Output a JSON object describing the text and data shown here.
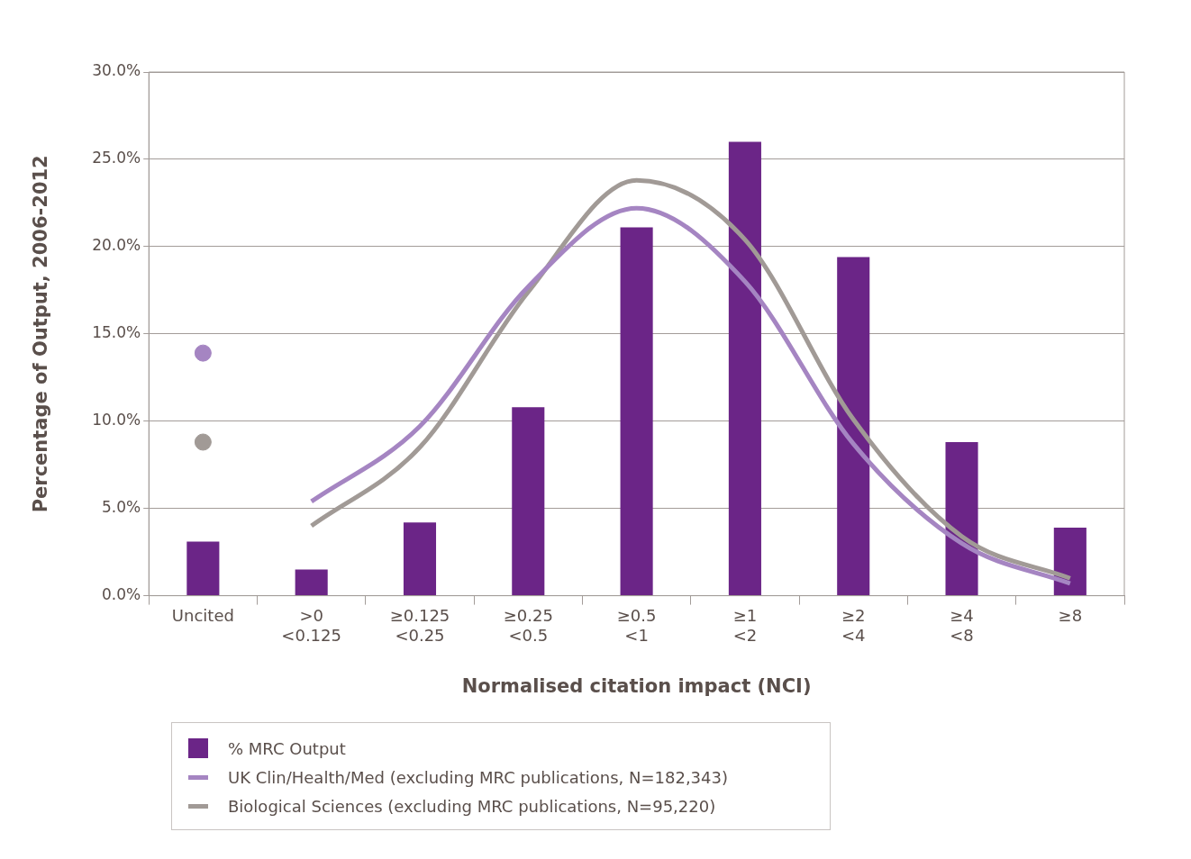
{
  "chart_data": {
    "type": "bar",
    "xlabel": "Normalised citation impact (NCI)",
    "ylabel": "Percentage of Output, 2006-2012",
    "categories": [
      "Uncited",
      ">0\n<0.125",
      "≥0.125\n<0.25",
      "≥0.25\n<0.5",
      "≥0.5\n<1",
      "≥1\n<2",
      "≥2\n<4",
      "≥4\n<8",
      "≥8"
    ],
    "series": [
      {
        "name": "% MRC Output",
        "color": "#6b2587",
        "values": [
          3.1,
          1.5,
          4.2,
          10.8,
          21.1,
          26.0,
          19.4,
          8.8,
          3.9
        ]
      },
      {
        "name": "UK Clin/Health/Med (excluding MRC publications, N=182,343)",
        "type": "line",
        "marker": "none",
        "color": "#a585c2",
        "values": [
          null,
          5.4,
          9.7,
          17.7,
          22.2,
          18.0,
          8.7,
          3.0,
          0.7
        ]
      },
      {
        "name": "Biological Sciences (excluding MRC publications, N=95,220)",
        "type": "line",
        "marker": "none",
        "color": "#a19a96",
        "values": [
          null,
          4.0,
          8.5,
          17.4,
          23.8,
          20.4,
          10.1,
          3.4,
          1.0
        ]
      },
      {
        "type": "scatter",
        "marker": "circle",
        "x": [
          "Uncited"
        ],
        "color": "#a585c2",
        "values": [
          13.9
        ]
      },
      {
        "type": "scatter",
        "marker": "circle",
        "x": [
          "Uncited"
        ],
        "color": "#a19a96",
        "values": [
          8.8
        ]
      }
    ],
    "ylim": [
      0,
      30
    ],
    "yticks": [
      {
        "value": 0,
        "label": "0.0%"
      },
      {
        "value": 5,
        "label": "5.0%"
      },
      {
        "value": 10,
        "label": "10.0%"
      },
      {
        "value": 15,
        "label": "15.0%"
      },
      {
        "value": 20,
        "label": "20.0%"
      },
      {
        "value": 25,
        "label": "25.0%"
      },
      {
        "value": 30,
        "label": "30.0%"
      }
    ],
    "grid": "y",
    "legend": "bottom",
    "line_style": "solid"
  }
}
